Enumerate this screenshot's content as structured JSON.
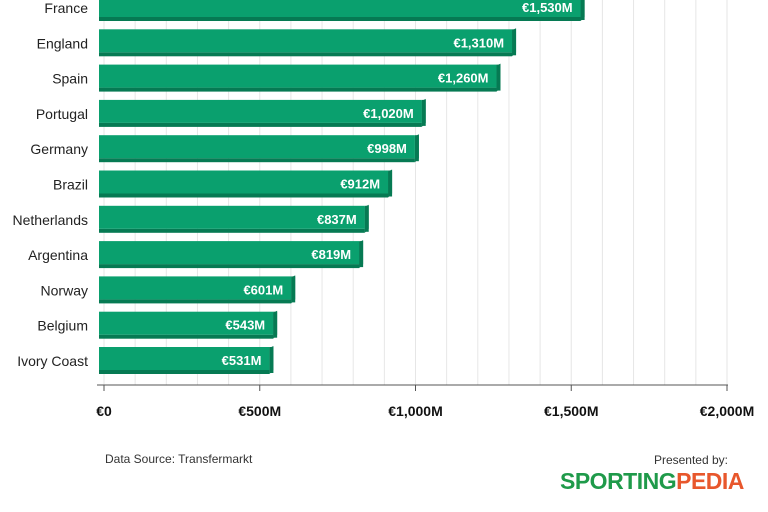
{
  "chart_data": {
    "type": "bar",
    "orientation": "horizontal",
    "categories": [
      "France",
      "England",
      "Spain",
      "Portugal",
      "Germany",
      "Brazil",
      "Netherlands",
      "Argentina",
      "Norway",
      "Belgium",
      "Ivory Coast"
    ],
    "values": [
      1530,
      1310,
      1260,
      1020,
      998,
      912,
      837,
      819,
      601,
      543,
      531
    ],
    "value_labels": [
      "€1,530M",
      "€1,310M",
      "€1,260M",
      "€1,020M",
      "€998M",
      "€912M",
      "€837M",
      "€819M",
      "€601M",
      "€543M",
      "€531M"
    ],
    "xlim": [
      0,
      2000
    ],
    "x_ticks": [
      0,
      500,
      1000,
      1500,
      2000
    ],
    "x_tick_labels": [
      "€0",
      "€500M",
      "€1,000M",
      "€1,500M",
      "€2,000M"
    ],
    "grid": true,
    "bar_color": "#0aa06e",
    "bar_shadow_color": "#067a53"
  },
  "footer": {
    "source": "Data Source: Transfermarkt",
    "presented_by": "Presented by:",
    "logo_part1": "SPORTING",
    "logo_part2": "PEDIA"
  },
  "colors": {
    "logo_green": "#1f9a4a",
    "logo_orange": "#e8572c"
  }
}
